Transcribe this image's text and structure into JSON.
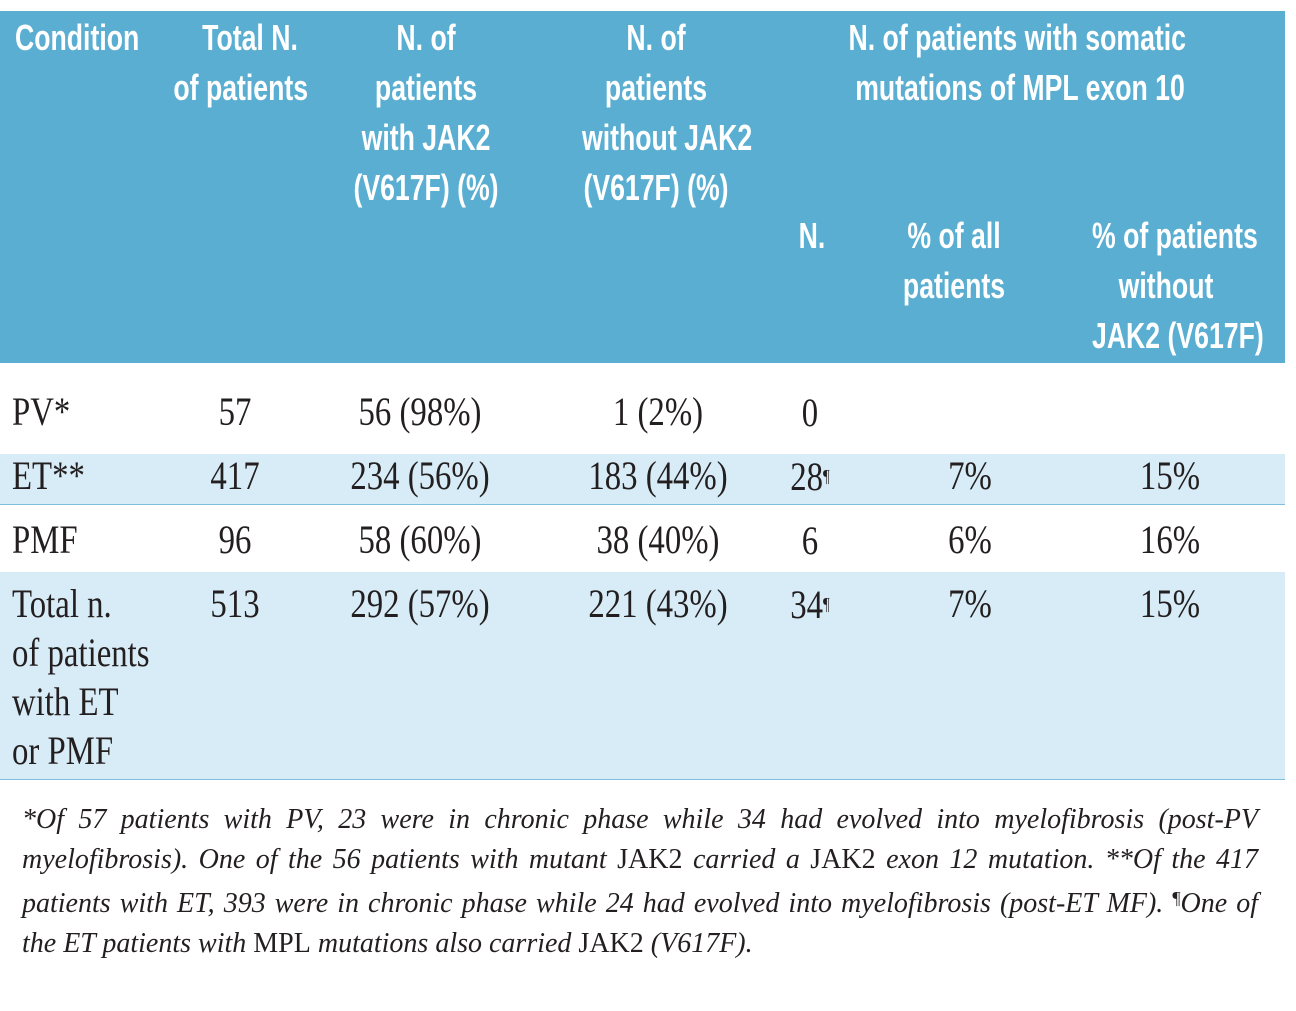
{
  "header": {
    "condition": "Condition",
    "total": [
      "Total N.",
      "of patients"
    ],
    "with_jak2": [
      "N. of",
      "patients",
      "with JAK2",
      "(V617F) (%)"
    ],
    "without_jak2": [
      "N. of",
      "patients",
      "without JAK2",
      "(V617F) (%)"
    ],
    "mpl_group": [
      "N. of patients with somatic",
      "mutations of MPL exon 10"
    ],
    "mpl_n": "N.",
    "mpl_pct_all": [
      "% of all",
      "patients"
    ],
    "mpl_pct_without": [
      "% of patients",
      "without",
      "JAK2 (V617F)"
    ]
  },
  "rows": [
    {
      "condition": [
        "PV*"
      ],
      "total": "57",
      "with_jak2": "56 (98%)",
      "without_jak2": "1 (2%)",
      "mpl_n": "0",
      "mpl_n_mark": "",
      "pct_all": "",
      "pct_without": ""
    },
    {
      "condition": [
        "ET**"
      ],
      "total": "417",
      "with_jak2": "234 (56%)",
      "without_jak2": "183 (44%)",
      "mpl_n": "28",
      "mpl_n_mark": "¶",
      "pct_all": "7%",
      "pct_without": "15%"
    },
    {
      "condition": [
        "PMF"
      ],
      "total": "96",
      "with_jak2": "58 (60%)",
      "without_jak2": "38 (40%)",
      "mpl_n": "6",
      "mpl_n_mark": "",
      "pct_all": "6%",
      "pct_without": "16%"
    },
    {
      "condition": [
        "Total n.",
        "of patients",
        "with ET",
        "or PMF"
      ],
      "total": "513",
      "with_jak2": "292 (57%)",
      "without_jak2": "221 (43%)",
      "mpl_n": "34",
      "mpl_n_mark": "¶",
      "pct_all": "7%",
      "pct_without": "15%"
    }
  ],
  "footnote": {
    "p1": "*Of 57 patients with PV, 23 were in chronic phase while 34 had evolved into myelofibrosis (post-PV myelofibrosis). One of the 56 patients with mutant ",
    "p1_jak2": "JAK2",
    "p2": " carried a ",
    "p2_jak2": "JAK2",
    "p3": " exon 12 mutation. **Of the 417 patients with ET, 393 were in chronic phase while 24 had evolved into myelofibrosis (post-ET MF). ",
    "para_mark": "¶",
    "p4": "One of the ET patients with ",
    "p4_mpl": "MPL",
    "p5": " mutations also carried ",
    "p5_jak2": "JAK2",
    "p6": " (V617F)."
  }
}
